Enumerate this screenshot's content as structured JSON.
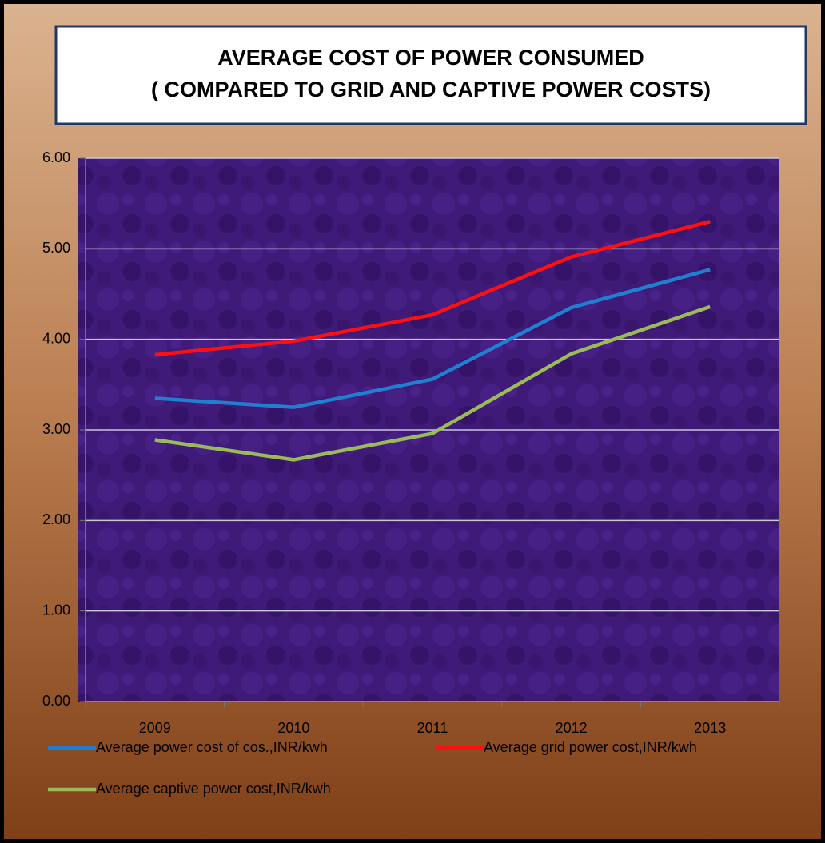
{
  "chart_data": {
    "type": "line",
    "title": [
      "AVERAGE COST OF POWER CONSUMED",
      "( COMPARED TO GRID AND CAPTIVE POWER COSTS)"
    ],
    "categories": [
      "2009",
      "2010",
      "2011",
      "2012",
      "2013"
    ],
    "series": [
      {
        "name": "Average power cost of cos.,INR/kwh",
        "color": "#1f7fd0",
        "values": [
          3.35,
          3.25,
          3.56,
          4.35,
          4.77
        ]
      },
      {
        "name": "Average grid power cost,INR/kwh",
        "color": "#ff1010",
        "values": [
          3.83,
          3.98,
          4.27,
          4.91,
          5.3
        ]
      },
      {
        "name": "Average captive power cost,INR/kwh",
        "color": "#9bbb59",
        "values": [
          2.89,
          2.67,
          2.96,
          3.84,
          4.36
        ]
      }
    ],
    "ylim": [
      0,
      6
    ],
    "yticks": [
      {
        "value": 0,
        "label": "0.00"
      },
      {
        "value": 1,
        "label": "1.00"
      },
      {
        "value": 2,
        "label": "2.00"
      },
      {
        "value": 3,
        "label": "3.00"
      },
      {
        "value": 4,
        "label": "4.00"
      },
      {
        "value": 5,
        "label": "5.00"
      },
      {
        "value": 6,
        "label": "6.00"
      }
    ],
    "grid": true,
    "legend": "bottom"
  }
}
